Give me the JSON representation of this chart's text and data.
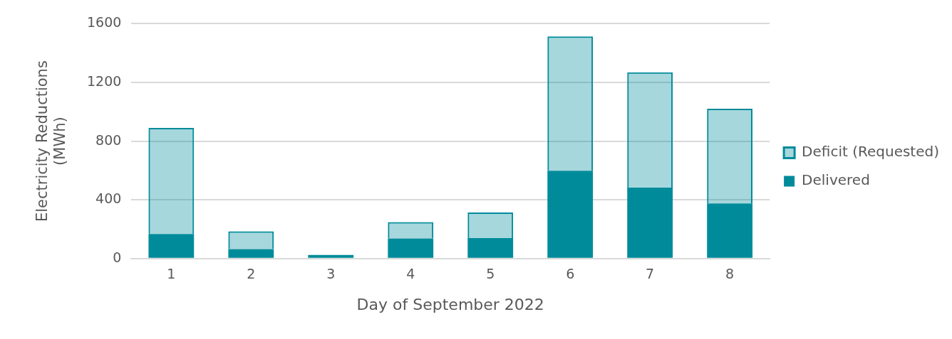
{
  "chart_data": {
    "type": "bar",
    "xlabel": "Day of September 2022",
    "ylabel": "Electricity Reductions (MWh)",
    "categories": [
      "1",
      "2",
      "3",
      "4",
      "5",
      "6",
      "7",
      "8"
    ],
    "series": [
      {
        "name": "Delivered",
        "color": "#008b9b",
        "values": [
          167,
          64,
          24,
          137,
          139,
          598,
          483,
          376
        ]
      },
      {
        "name": "Deficit (Requested)",
        "color": "#008b9b",
        "values": [
          723,
          121,
          null,
          111,
          175,
          916,
          786,
          645
        ]
      }
    ],
    "stacked": true,
    "ylim": [
      0,
      1600
    ],
    "yticks": [
      0,
      400,
      800,
      1200,
      1600
    ],
    "grid": "y",
    "legend": "right"
  }
}
